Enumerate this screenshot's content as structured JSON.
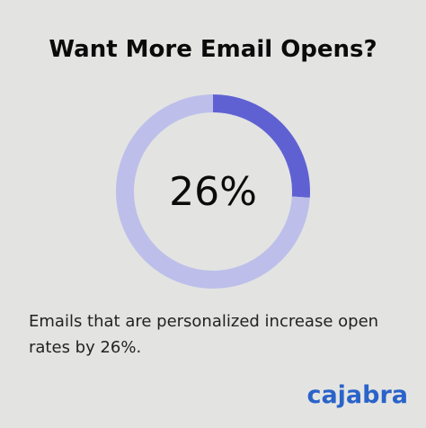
{
  "title": "Want More Email Opens?",
  "chart_data": {
    "type": "pie",
    "subtype": "donut",
    "center_label": "26%",
    "slices": [
      {
        "value": 26,
        "color": "#5f61d3"
      },
      {
        "value": 74,
        "color": "#bdbfea"
      }
    ]
  },
  "caption": "Emails that are personalized increase open rates by 26%.",
  "brand": "cajabra",
  "colors": {
    "background": "#e3e4e2",
    "accent": "#5f61d3",
    "track": "#bdbfea",
    "brand": "#2a63c9"
  }
}
